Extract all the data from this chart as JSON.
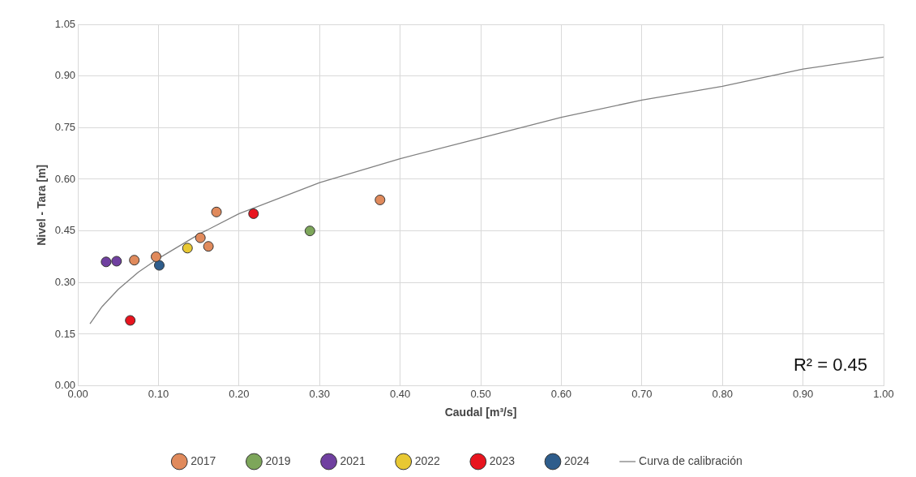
{
  "chart_data": {
    "type": "scatter",
    "xlabel": "Caudal [m³/s]",
    "ylabel": "Nivel - Tara [m]",
    "xlim": [
      0,
      1
    ],
    "xticks": [
      {
        "value": 0,
        "label": "0.00"
      },
      {
        "value": 0.1,
        "label": "0.10"
      },
      {
        "value": 0.2,
        "label": "0.20"
      },
      {
        "value": 0.3,
        "label": "0.30"
      },
      {
        "value": 0.4,
        "label": "0.40"
      },
      {
        "value": 0.5,
        "label": "0.50"
      },
      {
        "value": 0.6,
        "label": "0.60"
      },
      {
        "value": 0.7,
        "label": "0.70"
      },
      {
        "value": 0.8,
        "label": "0.80"
      },
      {
        "value": 0.9,
        "label": "0.90"
      },
      {
        "value": 1,
        "label": "1.00"
      }
    ],
    "ylim": [
      0,
      1.05
    ],
    "yticks": [
      {
        "value": 0,
        "label": "0.00"
      },
      {
        "value": 0.15,
        "label": "0.15"
      },
      {
        "value": 0.3,
        "label": "0.30"
      },
      {
        "value": 0.45,
        "label": "0.45"
      },
      {
        "value": 0.6,
        "label": "0.60"
      },
      {
        "value": 0.75,
        "label": "0.75"
      },
      {
        "value": 0.9,
        "label": "0.90"
      },
      {
        "value": 1.05,
        "label": "1.05"
      }
    ],
    "grid": true,
    "legend": "bottom",
    "marker": "circle",
    "series": [
      {
        "name": "2017",
        "color": "#e08a5c",
        "x": [
          0.07,
          0.097,
          0.152,
          0.162,
          0.172,
          0.375
        ],
        "values": [
          0.365,
          0.375,
          0.43,
          0.405,
          0.505,
          0.54
        ]
      },
      {
        "name": "2019",
        "color": "#7da65a",
        "x": [
          0.288
        ],
        "values": [
          0.45
        ]
      },
      {
        "name": "2021",
        "color": "#7040a0",
        "x": [
          0.035,
          0.048
        ],
        "values": [
          0.36,
          0.362
        ]
      },
      {
        "name": "2022",
        "color": "#e8c832",
        "x": [
          0.136
        ],
        "values": [
          0.4
        ]
      },
      {
        "name": "2023",
        "color": "#e8141e",
        "x": [
          0.065,
          0.218
        ],
        "values": [
          0.19,
          0.5
        ]
      },
      {
        "name": "2024",
        "color": "#2e5d8c",
        "x": [
          0.101
        ],
        "values": [
          0.35
        ]
      },
      {
        "name": "Curva de calibración",
        "type": "line",
        "color": "#808080",
        "marker": "none",
        "x": [
          0.015,
          0.03,
          0.05,
          0.075,
          0.1,
          0.15,
          0.2,
          0.3,
          0.4,
          0.5,
          0.6,
          0.7,
          0.8,
          0.9,
          1.0
        ],
        "values": [
          0.18,
          0.23,
          0.28,
          0.33,
          0.37,
          0.44,
          0.5,
          0.59,
          0.66,
          0.72,
          0.78,
          0.83,
          0.87,
          0.92,
          0.955
        ]
      }
    ],
    "annotations": [
      "R² = 0.45"
    ]
  }
}
